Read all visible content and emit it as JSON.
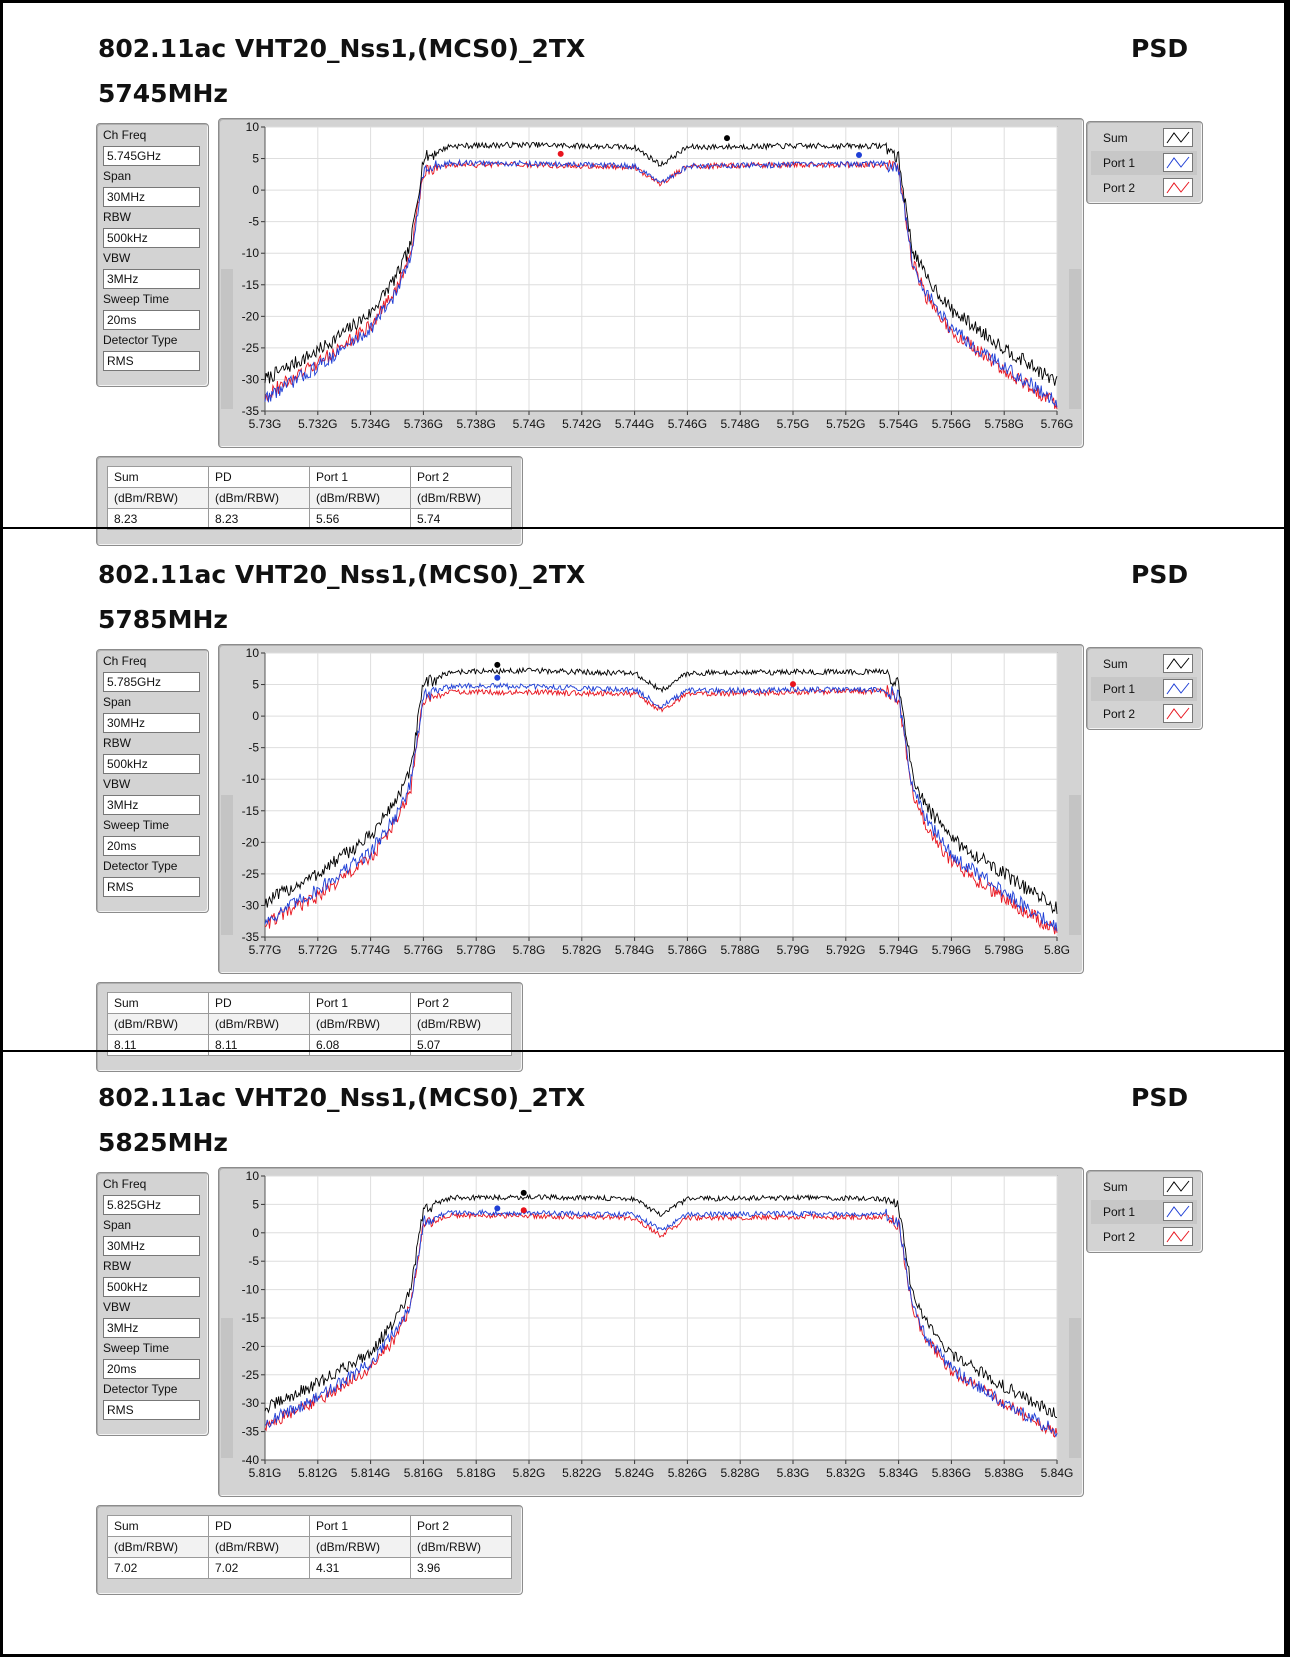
{
  "charts": [
    {
      "title": "802.11ac VHT20_Nss1,(MCS0)_2TX",
      "label": "PSD",
      "freq_label": "5745MHz",
      "params": [
        {
          "label": "Ch Freq",
          "value": "5.745GHz"
        },
        {
          "label": "Span",
          "value": "30MHz"
        },
        {
          "label": "RBW",
          "value": "500kHz"
        },
        {
          "label": "VBW",
          "value": "3MHz"
        },
        {
          "label": "Sweep Time",
          "value": "20ms"
        },
        {
          "label": "Detector Type",
          "value": "RMS"
        }
      ],
      "legend": [
        {
          "name": "Sum",
          "color": "#000000"
        },
        {
          "name": "Port 1",
          "color": "#1f3fd6"
        },
        {
          "name": "Port 2",
          "color": "#e8141e"
        }
      ],
      "summary": {
        "headers": [
          "Sum",
          "PD",
          "Port 1",
          "Port 2"
        ],
        "units": [
          "(dBm/RBW)",
          "(dBm/RBW)",
          "(dBm/RBW)",
          "(dBm/RBW)"
        ],
        "values": [
          "8.23",
          "8.23",
          "5.56",
          "5.74"
        ]
      },
      "chart_data": {
        "type": "line",
        "xlim": [
          5.73,
          5.76
        ],
        "ylim": [
          -35,
          10
        ],
        "yticks": [
          10,
          5,
          0,
          -5,
          -10,
          -15,
          -20,
          -25,
          -30,
          -35
        ],
        "xticks": [
          "5.73G",
          "5.732G",
          "5.734G",
          "5.736G",
          "5.738G",
          "5.74G",
          "5.742G",
          "5.744G",
          "5.746G",
          "5.748G",
          "5.75G",
          "5.752G",
          "5.754G",
          "5.756G",
          "5.758G",
          "5.76G"
        ],
        "grid": true,
        "band_edges": [
          5.736,
          5.754
        ],
        "series": [
          {
            "name": "Sum",
            "color": "#000000",
            "x": [
              5.73,
              5.732,
              5.734,
              5.735,
              5.7355,
              5.736,
              5.737,
              5.74,
              5.744,
              5.745,
              5.746,
              5.75,
              5.7535,
              5.754,
              5.7545,
              5.755,
              5.756,
              5.758,
              5.76
            ],
            "y": [
              -30,
              -25.5,
              -19.5,
              -13.5,
              -9,
              5,
              7,
              7.2,
              6.8,
              4,
              6.8,
              7,
              7,
              5,
              -9,
              -13.5,
              -19,
              -25,
              -30.5
            ]
          },
          {
            "name": "Port 1",
            "color": "#1f3fd6",
            "x": [
              5.73,
              5.732,
              5.734,
              5.735,
              5.7355,
              5.736,
              5.737,
              5.74,
              5.744,
              5.745,
              5.746,
              5.75,
              5.7535,
              5.754,
              5.7545,
              5.755,
              5.756,
              5.758,
              5.76
            ],
            "y": [
              -33,
              -28,
              -22,
              -16,
              -11,
              3,
              4.3,
              4.2,
              3.8,
              1,
              3.8,
              4,
              4.2,
              3,
              -11,
              -16,
              -22,
              -28,
              -33.5
            ]
          },
          {
            "name": "Port 2",
            "color": "#e8141e",
            "x": [
              5.73,
              5.732,
              5.734,
              5.735,
              5.7355,
              5.736,
              5.737,
              5.74,
              5.744,
              5.745,
              5.746,
              5.75,
              5.7535,
              5.754,
              5.7545,
              5.755,
              5.756,
              5.758,
              5.76
            ],
            "y": [
              -32.5,
              -27.5,
              -21.5,
              -15.5,
              -10.5,
              3,
              4,
              4,
              3.6,
              1,
              3.8,
              4,
              4,
              3,
              -11,
              -16.5,
              -22.5,
              -28.5,
              -34
            ]
          }
        ],
        "markers": [
          {
            "series": "Sum",
            "x": 5.7475,
            "y": 8.23
          },
          {
            "series": "Port 1",
            "x": 5.7525,
            "y": 5.56
          },
          {
            "series": "Port 2",
            "x": 5.7412,
            "y": 5.74
          }
        ]
      }
    },
    {
      "title": "802.11ac VHT20_Nss1,(MCS0)_2TX",
      "label": "PSD",
      "freq_label": "5785MHz",
      "params": [
        {
          "label": "Ch Freq",
          "value": "5.785GHz"
        },
        {
          "label": "Span",
          "value": "30MHz"
        },
        {
          "label": "RBW",
          "value": "500kHz"
        },
        {
          "label": "VBW",
          "value": "3MHz"
        },
        {
          "label": "Sweep Time",
          "value": "20ms"
        },
        {
          "label": "Detector Type",
          "value": "RMS"
        }
      ],
      "legend": [
        {
          "name": "Sum",
          "color": "#000000"
        },
        {
          "name": "Port 1",
          "color": "#1f3fd6"
        },
        {
          "name": "Port 2",
          "color": "#e8141e"
        }
      ],
      "summary": {
        "headers": [
          "Sum",
          "PD",
          "Port 1",
          "Port 2"
        ],
        "units": [
          "(dBm/RBW)",
          "(dBm/RBW)",
          "(dBm/RBW)",
          "(dBm/RBW)"
        ],
        "values": [
          "8.11",
          "8.11",
          "6.08",
          "5.07"
        ]
      },
      "chart_data": {
        "type": "line",
        "xlim": [
          5.77,
          5.8
        ],
        "ylim": [
          -35,
          10
        ],
        "yticks": [
          10,
          5,
          0,
          -5,
          -10,
          -15,
          -20,
          -25,
          -30,
          -35
        ],
        "xticks": [
          "5.77G",
          "5.772G",
          "5.774G",
          "5.776G",
          "5.778G",
          "5.78G",
          "5.782G",
          "5.784G",
          "5.786G",
          "5.788G",
          "5.79G",
          "5.792G",
          "5.794G",
          "5.796G",
          "5.798G",
          "5.8G"
        ],
        "grid": true,
        "band_edges": [
          5.776,
          5.794
        ],
        "series": [
          {
            "name": "Sum",
            "color": "#000000",
            "x": [
              5.77,
              5.772,
              5.774,
              5.775,
              5.7755,
              5.776,
              5.777,
              5.78,
              5.784,
              5.785,
              5.786,
              5.79,
              5.7935,
              5.794,
              5.7945,
              5.795,
              5.796,
              5.798,
              5.8
            ],
            "y": [
              -29.5,
              -25,
              -19,
              -13,
              -9,
              5,
              7,
              7.2,
              6.8,
              4,
              6.8,
              7,
              7,
              5,
              -9,
              -14,
              -19.5,
              -25,
              -30.5
            ]
          },
          {
            "name": "Port 1",
            "color": "#1f3fd6",
            "x": [
              5.77,
              5.772,
              5.774,
              5.775,
              5.7755,
              5.776,
              5.777,
              5.78,
              5.784,
              5.785,
              5.786,
              5.79,
              5.7935,
              5.794,
              5.7945,
              5.795,
              5.796,
              5.798,
              5.8
            ],
            "y": [
              -32.5,
              -27.5,
              -21.5,
              -15.5,
              -11,
              3,
              4.8,
              4.7,
              4.2,
              1.5,
              4,
              4.2,
              4.2,
              3,
              -11,
              -16,
              -22,
              -28,
              -33.5
            ]
          },
          {
            "name": "Port 2",
            "color": "#e8141e",
            "x": [
              5.77,
              5.772,
              5.774,
              5.775,
              5.7755,
              5.776,
              5.777,
              5.78,
              5.784,
              5.785,
              5.786,
              5.79,
              5.7935,
              5.794,
              5.7945,
              5.795,
              5.796,
              5.798,
              5.8
            ],
            "y": [
              -33,
              -28.5,
              -22.5,
              -16.5,
              -12,
              2.5,
              3.8,
              3.8,
              3.5,
              1,
              3.5,
              3.8,
              4,
              3,
              -11.5,
              -17,
              -23,
              -29,
              -34
            ]
          }
        ],
        "markers": [
          {
            "series": "Sum",
            "x": 5.7788,
            "y": 8.11
          },
          {
            "series": "Port 1",
            "x": 5.7788,
            "y": 6.08
          },
          {
            "series": "Port 2",
            "x": 5.79,
            "y": 5.07
          }
        ]
      }
    },
    {
      "title": "802.11ac VHT20_Nss1,(MCS0)_2TX",
      "label": "PSD",
      "freq_label": "5825MHz",
      "params": [
        {
          "label": "Ch Freq",
          "value": "5.825GHz"
        },
        {
          "label": "Span",
          "value": "30MHz"
        },
        {
          "label": "RBW",
          "value": "500kHz"
        },
        {
          "label": "VBW",
          "value": "3MHz"
        },
        {
          "label": "Sweep Time",
          "value": "20ms"
        },
        {
          "label": "Detector Type",
          "value": "RMS"
        }
      ],
      "legend": [
        {
          "name": "Sum",
          "color": "#000000"
        },
        {
          "name": "Port 1",
          "color": "#1f3fd6"
        },
        {
          "name": "Port 2",
          "color": "#e8141e"
        }
      ],
      "summary": {
        "headers": [
          "Sum",
          "PD",
          "Port 1",
          "Port 2"
        ],
        "units": [
          "(dBm/RBW)",
          "(dBm/RBW)",
          "(dBm/RBW)",
          "(dBm/RBW)"
        ],
        "values": [
          "7.02",
          "7.02",
          "4.31",
          "3.96"
        ]
      },
      "chart_data": {
        "type": "line",
        "xlim": [
          5.81,
          5.84
        ],
        "ylim": [
          -40,
          10
        ],
        "yticks": [
          10,
          5,
          0,
          -5,
          -10,
          -15,
          -20,
          -25,
          -30,
          -35,
          -40
        ],
        "xticks": [
          "5.81G",
          "5.812G",
          "5.814G",
          "5.816G",
          "5.818G",
          "5.82G",
          "5.822G",
          "5.824G",
          "5.826G",
          "5.828G",
          "5.83G",
          "5.832G",
          "5.834G",
          "5.836G",
          "5.838G",
          "5.84G"
        ],
        "grid": true,
        "band_edges": [
          5.816,
          5.834
        ],
        "series": [
          {
            "name": "Sum",
            "color": "#000000",
            "x": [
              5.81,
              5.812,
              5.814,
              5.815,
              5.8155,
              5.816,
              5.817,
              5.82,
              5.824,
              5.825,
              5.826,
              5.83,
              5.8335,
              5.834,
              5.8345,
              5.835,
              5.836,
              5.838,
              5.84
            ],
            "y": [
              -31,
              -26.5,
              -21,
              -15,
              -10.5,
              4,
              6.2,
              6.3,
              6,
              3,
              6,
              6.2,
              6,
              4.5,
              -10,
              -15.5,
              -21.5,
              -27,
              -32
            ]
          },
          {
            "name": "Port 1",
            "color": "#1f3fd6",
            "x": [
              5.81,
              5.812,
              5.814,
              5.815,
              5.8155,
              5.816,
              5.817,
              5.82,
              5.824,
              5.825,
              5.826,
              5.83,
              5.8335,
              5.834,
              5.8345,
              5.835,
              5.836,
              5.838,
              5.84
            ],
            "y": [
              -33.5,
              -29,
              -23,
              -17,
              -12.5,
              2,
              3.6,
              3.5,
              3.2,
              0.5,
              3.2,
              3.4,
              3.2,
              2,
              -12.5,
              -18,
              -24,
              -30,
              -35
            ]
          },
          {
            "name": "Port 2",
            "color": "#e8141e",
            "x": [
              5.81,
              5.812,
              5.814,
              5.815,
              5.8155,
              5.816,
              5.817,
              5.82,
              5.824,
              5.825,
              5.826,
              5.83,
              5.8335,
              5.834,
              5.8345,
              5.835,
              5.836,
              5.838,
              5.84
            ],
            "y": [
              -34,
              -29.5,
              -24,
              -18,
              -13,
              1.5,
              3,
              3,
              2.6,
              -0.5,
              2.6,
              2.8,
              2.8,
              1.5,
              -13,
              -18.5,
              -24.5,
              -30,
              -35.5
            ]
          }
        ],
        "markers": [
          {
            "series": "Sum",
            "x": 5.8198,
            "y": 7.02
          },
          {
            "series": "Port 1",
            "x": 5.8188,
            "y": 4.31
          },
          {
            "series": "Port 2",
            "x": 5.8198,
            "y": 3.96
          }
        ]
      }
    }
  ]
}
